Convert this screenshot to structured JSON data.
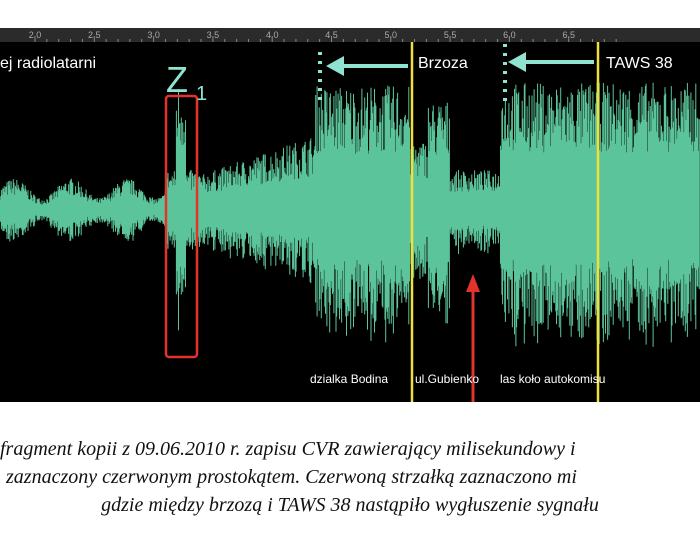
{
  "figure": {
    "ruler_ticks": [
      "2.0",
      "2.5",
      "3.0",
      "3.5",
      "4.0",
      "4.5",
      "5.0",
      "5.5",
      "6.0",
      "6.5"
    ],
    "labels": {
      "left": "ej radiolatarni",
      "brzoza": "Brzoza",
      "taws": "TAWS 38",
      "z": "Z",
      "z_sub": "1"
    },
    "bottom_labels": [
      "dzialka Bodina",
      "ul.Gubienko",
      "las koło autokomisu"
    ]
  },
  "caption": {
    "lines": [
      "fragment kopii z 09.06.2010 r. zapisu CVR zawierający milisekundowy i",
      "zaznaczony czerwonym prostokątem. Czerwoną strzałką zaznaczono mi",
      "gdzie między brzozą i TAWS 38 nastąpiło wygłuszenie sygnału"
    ]
  }
}
